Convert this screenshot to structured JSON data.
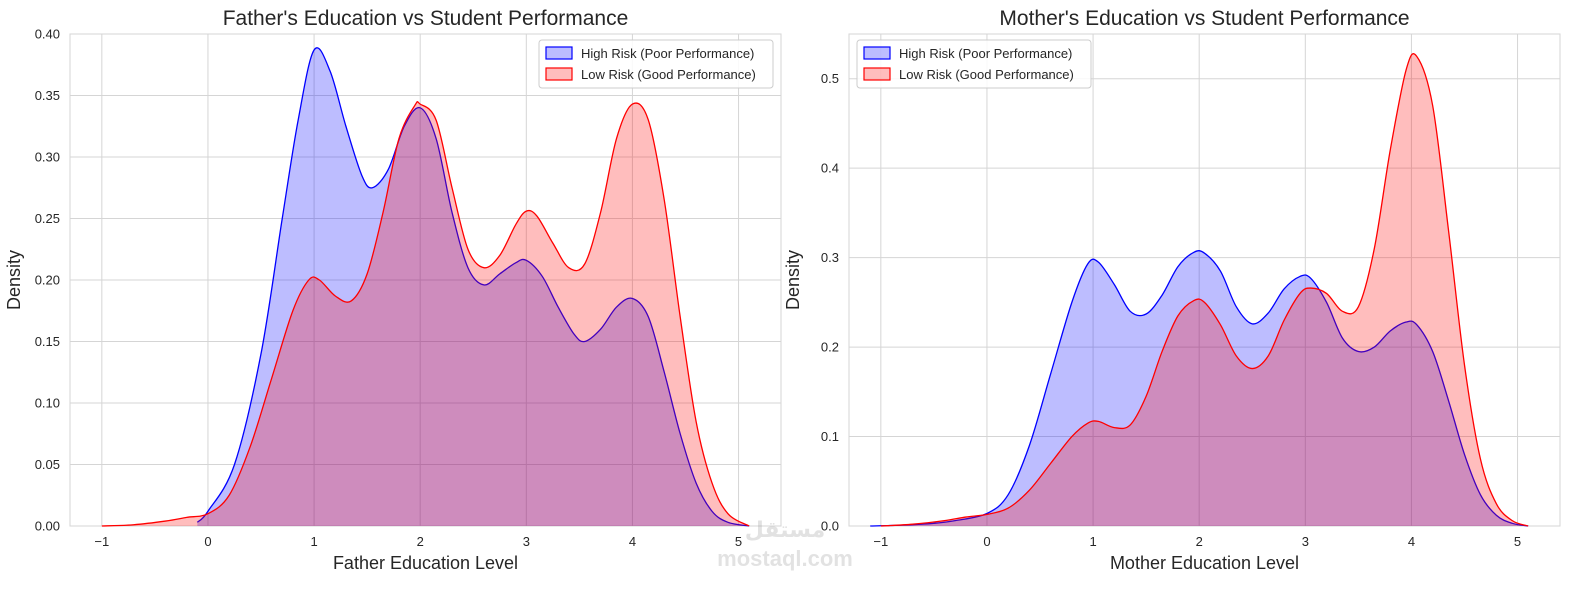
{
  "watermark": {
    "arabic": "مستقل",
    "latin": "mostaql.com"
  },
  "chart_data": [
    {
      "type": "area",
      "title": "Father's Education vs Student Performance",
      "xlabel": "Father Education Level",
      "ylabel": "Density",
      "xlim": [
        -1.3,
        5.4
      ],
      "ylim": [
        0,
        0.4
      ],
      "xticks": [
        -1,
        0,
        1,
        2,
        3,
        4,
        5
      ],
      "yticks": [
        0.0,
        0.05,
        0.1,
        0.15,
        0.2,
        0.25,
        0.3,
        0.35,
        0.4
      ],
      "ytick_format": 2,
      "grid": true,
      "legend_position": "top-right",
      "series": [
        {
          "name": "High Risk (Poor Performance)",
          "color": "#0000ff",
          "fill": "#0000ff",
          "x": [
            -0.1,
            0.0,
            0.25,
            0.5,
            0.7,
            0.85,
            1.0,
            1.15,
            1.3,
            1.45,
            1.55,
            1.7,
            1.85,
            2.0,
            2.15,
            2.3,
            2.45,
            2.6,
            2.75,
            2.9,
            3.0,
            3.15,
            3.3,
            3.45,
            3.55,
            3.7,
            3.85,
            4.0,
            4.15,
            4.3,
            4.45,
            4.6,
            4.75,
            4.9,
            5.1
          ],
          "y": [
            0.003,
            0.012,
            0.05,
            0.14,
            0.25,
            0.33,
            0.387,
            0.37,
            0.325,
            0.285,
            0.275,
            0.29,
            0.325,
            0.34,
            0.315,
            0.255,
            0.21,
            0.196,
            0.205,
            0.214,
            0.216,
            0.203,
            0.178,
            0.156,
            0.15,
            0.16,
            0.178,
            0.185,
            0.17,
            0.125,
            0.075,
            0.035,
            0.012,
            0.003,
            0.0
          ]
        },
        {
          "name": "Low Risk (Good Performance)",
          "color": "#ff0000",
          "fill": "#ff0000",
          "x": [
            -1.0,
            -0.7,
            -0.4,
            -0.2,
            0.0,
            0.2,
            0.4,
            0.6,
            0.8,
            0.95,
            1.05,
            1.2,
            1.35,
            1.5,
            1.65,
            1.8,
            1.95,
            2.0,
            2.15,
            2.3,
            2.45,
            2.6,
            2.75,
            2.9,
            3.0,
            3.1,
            3.25,
            3.4,
            3.55,
            3.7,
            3.85,
            4.0,
            4.15,
            4.3,
            4.45,
            4.6,
            4.75,
            4.9,
            5.1
          ],
          "y": [
            0.0,
            0.001,
            0.004,
            0.007,
            0.01,
            0.025,
            0.065,
            0.12,
            0.175,
            0.2,
            0.2,
            0.187,
            0.183,
            0.205,
            0.255,
            0.315,
            0.342,
            0.343,
            0.33,
            0.275,
            0.225,
            0.21,
            0.22,
            0.245,
            0.256,
            0.252,
            0.23,
            0.21,
            0.213,
            0.255,
            0.315,
            0.343,
            0.33,
            0.265,
            0.17,
            0.085,
            0.035,
            0.01,
            0.0
          ]
        }
      ]
    },
    {
      "type": "area",
      "title": "Mother's Education vs Student Performance",
      "xlabel": "Mother Education Level",
      "ylabel": "Density",
      "xlim": [
        -1.3,
        5.4
      ],
      "ylim": [
        0,
        0.55
      ],
      "xticks": [
        -1,
        0,
        1,
        2,
        3,
        4,
        5
      ],
      "yticks": [
        0.0,
        0.1,
        0.2,
        0.3,
        0.4,
        0.5
      ],
      "ytick_format": 1,
      "grid": true,
      "legend_position": "top-left",
      "series": [
        {
          "name": "High Risk (Poor Performance)",
          "color": "#0000ff",
          "fill": "#0000ff",
          "x": [
            -1.1,
            -0.8,
            -0.5,
            -0.3,
            0.0,
            0.2,
            0.4,
            0.6,
            0.8,
            0.95,
            1.05,
            1.2,
            1.35,
            1.5,
            1.65,
            1.8,
            1.95,
            2.05,
            2.2,
            2.35,
            2.5,
            2.65,
            2.8,
            2.95,
            3.05,
            3.2,
            3.35,
            3.5,
            3.65,
            3.8,
            3.95,
            4.05,
            4.2,
            4.35,
            4.5,
            4.65,
            4.8,
            4.95,
            5.1
          ],
          "y": [
            0.0,
            0.001,
            0.003,
            0.006,
            0.014,
            0.035,
            0.09,
            0.17,
            0.25,
            0.293,
            0.295,
            0.27,
            0.24,
            0.237,
            0.258,
            0.29,
            0.306,
            0.305,
            0.285,
            0.245,
            0.226,
            0.238,
            0.265,
            0.279,
            0.277,
            0.25,
            0.21,
            0.195,
            0.2,
            0.218,
            0.228,
            0.225,
            0.195,
            0.14,
            0.08,
            0.035,
            0.012,
            0.003,
            0.0
          ]
        },
        {
          "name": "Low Risk (Good Performance)",
          "color": "#ff0000",
          "fill": "#ff0000",
          "x": [
            -1.0,
            -0.7,
            -0.4,
            -0.2,
            0.0,
            0.2,
            0.4,
            0.6,
            0.8,
            0.95,
            1.05,
            1.2,
            1.35,
            1.5,
            1.65,
            1.8,
            1.95,
            2.05,
            2.2,
            2.35,
            2.5,
            2.65,
            2.8,
            2.95,
            3.05,
            3.2,
            3.35,
            3.5,
            3.65,
            3.8,
            3.95,
            4.05,
            4.2,
            4.35,
            4.5,
            4.65,
            4.8,
            4.95,
            5.1
          ],
          "y": [
            0.0,
            0.002,
            0.006,
            0.01,
            0.013,
            0.02,
            0.04,
            0.07,
            0.1,
            0.115,
            0.117,
            0.11,
            0.113,
            0.145,
            0.195,
            0.235,
            0.252,
            0.25,
            0.225,
            0.19,
            0.176,
            0.19,
            0.23,
            0.26,
            0.266,
            0.26,
            0.24,
            0.245,
            0.31,
            0.42,
            0.51,
            0.525,
            0.47,
            0.33,
            0.18,
            0.075,
            0.025,
            0.006,
            0.0
          ]
        }
      ]
    }
  ]
}
